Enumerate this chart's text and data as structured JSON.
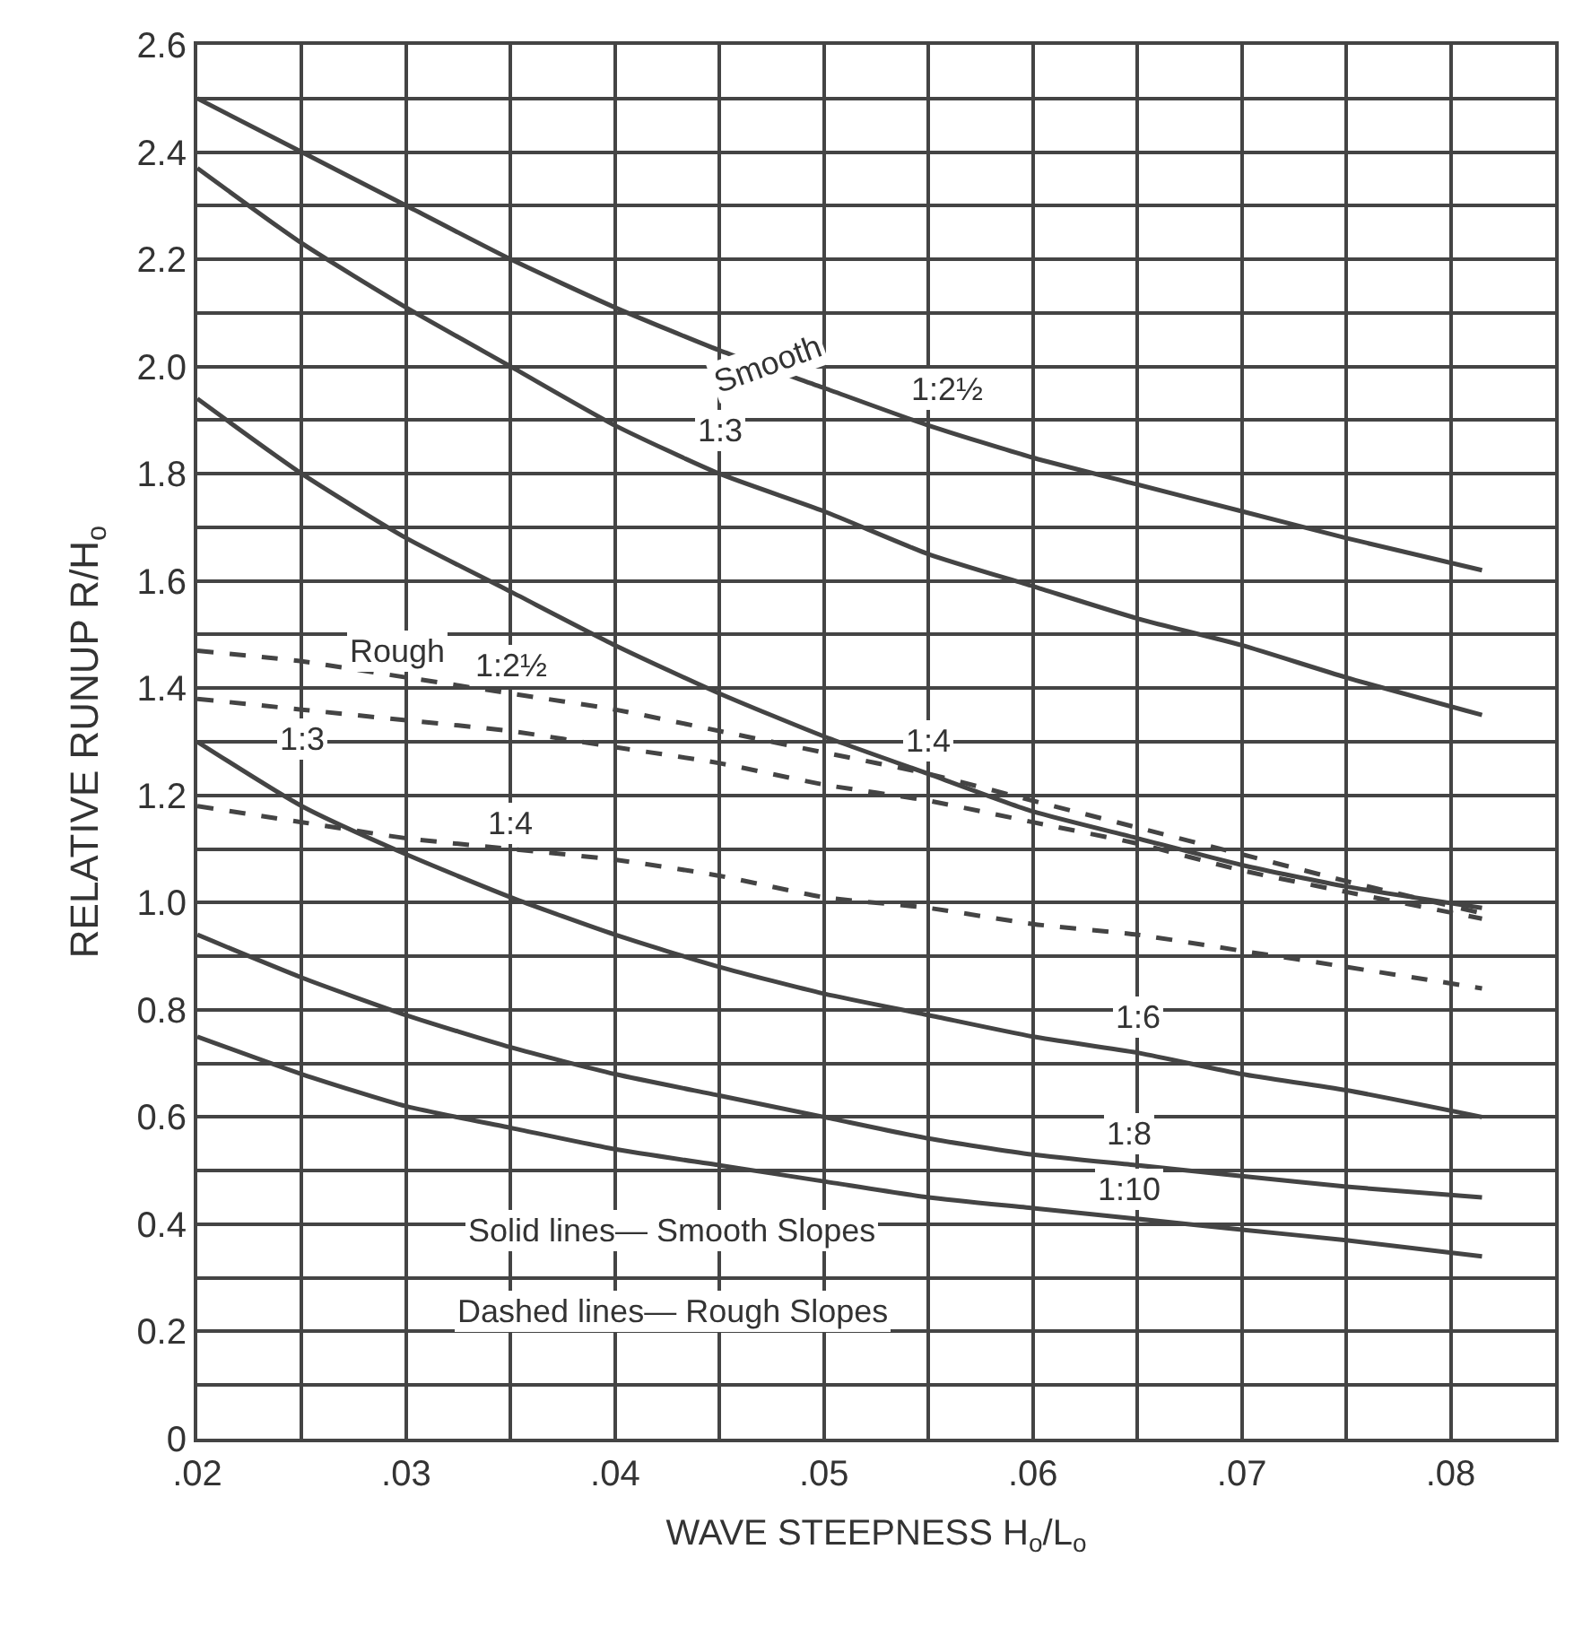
{
  "chart_data": {
    "type": "line",
    "xlabel": "WAVE STEEPNESS H$_{o}$/L$_{o}$",
    "ylabel": "RELATIVE RUNUP R/H$_{o}$",
    "x": [
      0.02,
      0.025,
      0.03,
      0.035,
      0.04,
      0.045,
      0.05,
      0.055,
      0.06,
      0.065,
      0.07,
      0.075,
      0.0815
    ],
    "series": [
      {
        "name": "1:2½",
        "color": "#444444",
        "line_style": "solid",
        "values": [
          2.5,
          2.4,
          2.3,
          2.2,
          2.11,
          2.03,
          1.96,
          1.89,
          1.83,
          1.78,
          1.73,
          1.68,
          1.62
        ]
      },
      {
        "name": "1:3",
        "color": "#444444",
        "line_style": "solid",
        "values": [
          2.37,
          2.23,
          2.11,
          2.0,
          1.89,
          1.8,
          1.73,
          1.65,
          1.59,
          1.53,
          1.48,
          1.42,
          1.35
        ]
      },
      {
        "name": "1:4",
        "color": "#444444",
        "line_style": "solid",
        "values": [
          1.94,
          1.8,
          1.68,
          1.58,
          1.48,
          1.39,
          1.31,
          1.24,
          1.17,
          1.12,
          1.07,
          1.03,
          0.99
        ]
      },
      {
        "name": "1:6",
        "color": "#444444",
        "line_style": "solid",
        "values": [
          1.3,
          1.18,
          1.09,
          1.01,
          0.94,
          0.88,
          0.83,
          0.79,
          0.75,
          0.72,
          0.68,
          0.65,
          0.6
        ]
      },
      {
        "name": "1:8",
        "color": "#444444",
        "line_style": "solid",
        "values": [
          0.94,
          0.86,
          0.79,
          0.73,
          0.68,
          0.64,
          0.6,
          0.56,
          0.53,
          0.51,
          0.49,
          0.47,
          0.45
        ]
      },
      {
        "name": "1:10",
        "color": "#444444",
        "line_style": "solid",
        "values": [
          0.75,
          0.68,
          0.62,
          0.58,
          0.54,
          0.51,
          0.48,
          0.45,
          0.43,
          0.41,
          0.39,
          0.37,
          0.34
        ]
      },
      {
        "name": "1:2½",
        "color": "#444444",
        "line_style": "dashed",
        "values": [
          1.47,
          1.45,
          1.42,
          1.39,
          1.36,
          1.32,
          1.28,
          1.24,
          1.19,
          1.14,
          1.09,
          1.04,
          0.98
        ]
      },
      {
        "name": "1:3",
        "color": "#444444",
        "line_style": "dashed",
        "values": [
          1.38,
          1.36,
          1.34,
          1.32,
          1.29,
          1.26,
          1.22,
          1.19,
          1.15,
          1.11,
          1.06,
          1.02,
          0.97
        ]
      },
      {
        "name": "1:4",
        "color": "#444444",
        "line_style": "dashed",
        "values": [
          1.18,
          1.15,
          1.12,
          1.1,
          1.08,
          1.05,
          1.01,
          0.99,
          0.96,
          0.94,
          0.91,
          0.88,
          0.84
        ]
      }
    ],
    "annotations": [
      "Smooth",
      "Rough",
      "Solid lines— Smooth Slopes",
      "Dashed lines— Rough Slopes"
    ],
    "xlim": [
      0.02,
      0.085
    ],
    "ylim": [
      0,
      2.6
    ],
    "xticks": [
      {
        "value": 0.02,
        "label": ".02"
      },
      {
        "value": 0.025,
        "label": null
      },
      {
        "value": 0.03,
        "label": ".03"
      },
      {
        "value": 0.035,
        "label": null
      },
      {
        "value": 0.04,
        "label": ".04"
      },
      {
        "value": 0.045,
        "label": null
      },
      {
        "value": 0.05,
        "label": ".05"
      },
      {
        "value": 0.055,
        "label": null
      },
      {
        "value": 0.06,
        "label": ".06"
      },
      {
        "value": 0.065,
        "label": null
      },
      {
        "value": 0.07,
        "label": ".07"
      },
      {
        "value": 0.075,
        "label": null
      },
      {
        "value": 0.08,
        "label": ".08"
      }
    ],
    "yticks": [
      0,
      {
        "value": 0.1,
        "label": null
      },
      0.2,
      {
        "value": 0.3,
        "label": null
      },
      0.4,
      {
        "value": 0.5,
        "label": null
      },
      0.6,
      {
        "value": 0.7,
        "label": null
      },
      0.8,
      {
        "value": 0.9,
        "label": null
      },
      {
        "value": 1.0,
        "label": "1.0"
      },
      {
        "value": 1.1,
        "label": null
      },
      1.2,
      {
        "value": 1.3,
        "label": null
      },
      1.4,
      {
        "value": 1.5,
        "label": null
      },
      1.6,
      {
        "value": 1.7,
        "label": null
      },
      1.8,
      {
        "value": 1.9,
        "label": null
      },
      {
        "value": 2.0,
        "label": "2.0"
      },
      {
        "value": 2.1,
        "label": null
      },
      2.2,
      {
        "value": 2.3,
        "label": null
      },
      2.4,
      {
        "value": 2.5,
        "label": null
      },
      2.6
    ],
    "grid": true,
    "legend": false,
    "marker": "none"
  }
}
